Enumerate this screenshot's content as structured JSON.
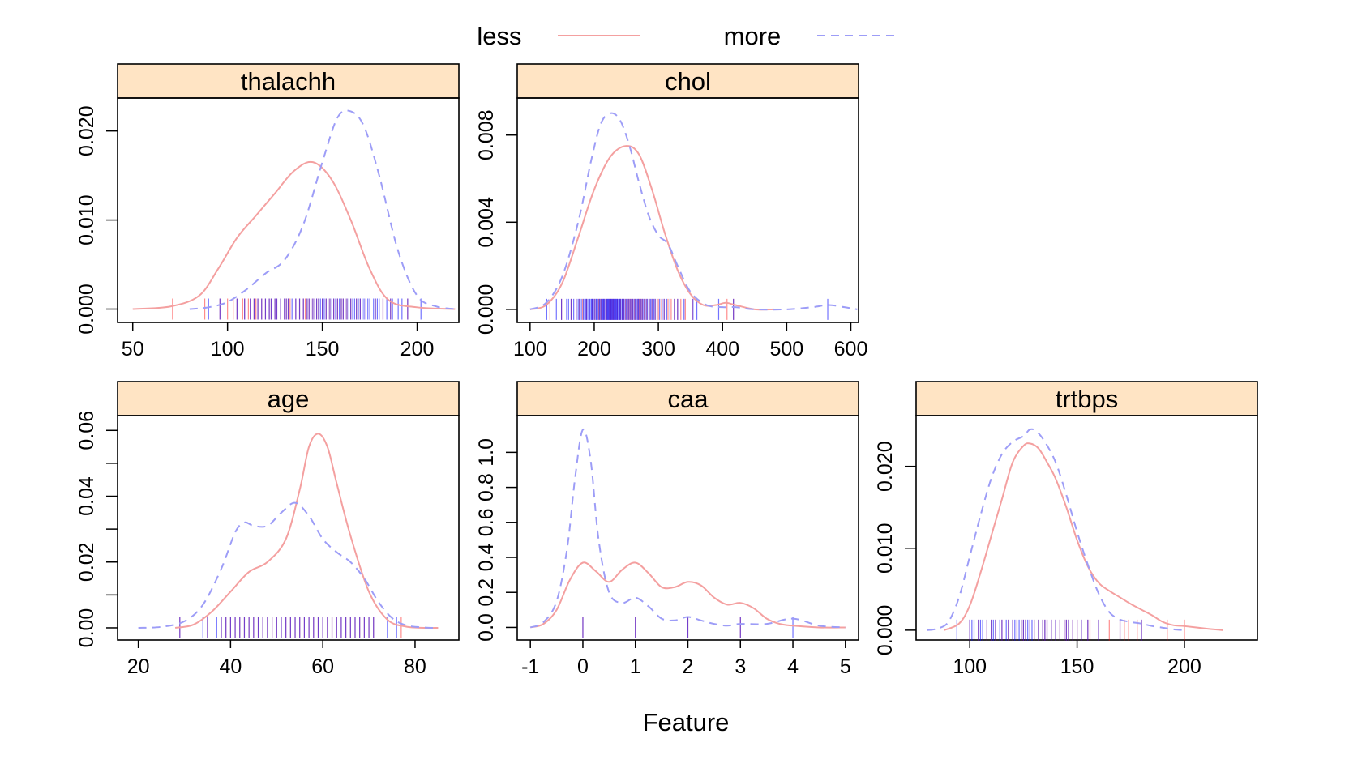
{
  "legend": {
    "entries": [
      {
        "label": "less",
        "color": "#f4a0a0",
        "dash": "solid"
      },
      {
        "label": "more",
        "color": "#9d9df7",
        "dash": "dashed"
      }
    ]
  },
  "xlabel": "Feature",
  "colors": {
    "strip": "#ffe4c4",
    "less_line": "#f4a0a0",
    "more_line": "#9d9df7",
    "rug_less": "#ff0000",
    "rug_more": "#0000ff"
  },
  "chart_data": [
    {
      "type": "line",
      "title": "thalachh",
      "xlim": [
        42,
        222
      ],
      "ylim": [
        -0.0015,
        0.0237
      ],
      "xticks": [
        50,
        100,
        150,
        200
      ],
      "yticks": [
        0,
        0.01,
        0.02
      ],
      "ytick_labels": [
        "0.000",
        "0.010",
        "0.020"
      ],
      "series": [
        {
          "name": "less",
          "x": [
            50,
            70,
            85,
            95,
            105,
            115,
            125,
            135,
            145,
            155,
            165,
            175,
            185,
            200,
            220
          ],
          "y": [
            0.0,
            0.0003,
            0.0015,
            0.0045,
            0.008,
            0.0105,
            0.013,
            0.0155,
            0.0165,
            0.0145,
            0.01,
            0.0045,
            0.001,
            0.0002,
            0.0
          ]
        },
        {
          "name": "more",
          "x": [
            80,
            90,
            100,
            110,
            120,
            130,
            140,
            150,
            158,
            165,
            172,
            180,
            190,
            200,
            210,
            220
          ],
          "y": [
            0.0,
            0.0002,
            0.0008,
            0.0022,
            0.004,
            0.0055,
            0.0095,
            0.0165,
            0.0215,
            0.0222,
            0.0205,
            0.015,
            0.0065,
            0.0015,
            0.0003,
            0.0
          ]
        }
      ],
      "rug_less": [
        71,
        88,
        96,
        100,
        103,
        105,
        108,
        109,
        111,
        112,
        114,
        115,
        116,
        118,
        120,
        122,
        123,
        125,
        126,
        128,
        130,
        131,
        132,
        133,
        136,
        138,
        140,
        141,
        142,
        143,
        144,
        145,
        146,
        147,
        148,
        150,
        152,
        153,
        154,
        156,
        158,
        160,
        161,
        162,
        163,
        165,
        168,
        170,
        173,
        178,
        182,
        186,
        195
      ],
      "rug_more": [
        90,
        96,
        105,
        109,
        112,
        114,
        116,
        118,
        120,
        122,
        123,
        125,
        126,
        128,
        130,
        131,
        132,
        134,
        136,
        138,
        140,
        142,
        143,
        144,
        145,
        146,
        147,
        148,
        149,
        150,
        151,
        152,
        153,
        154,
        155,
        156,
        157,
        158,
        159,
        160,
        161,
        162,
        163,
        164,
        165,
        166,
        167,
        168,
        169,
        170,
        171,
        172,
        173,
        174,
        175,
        177,
        178,
        179,
        180,
        182,
        184,
        186,
        187,
        190,
        192,
        195,
        202
      ]
    },
    {
      "type": "line",
      "title": "chol",
      "xlim": [
        80,
        612
      ],
      "ylim": [
        -0.0006,
        0.0097
      ],
      "xticks": [
        100,
        200,
        300,
        400,
        500,
        600
      ],
      "yticks": [
        0,
        0.004,
        0.008
      ],
      "ytick_labels": [
        "0.000",
        "0.004",
        "0.008"
      ],
      "series": [
        {
          "name": "less",
          "x": [
            100,
            125,
            150,
            175,
            200,
            225,
            250,
            270,
            290,
            310,
            330,
            350,
            370,
            390,
            405,
            420,
            450,
            480
          ],
          "y": [
            0.0,
            0.0002,
            0.0012,
            0.0033,
            0.0055,
            0.007,
            0.0075,
            0.0071,
            0.0055,
            0.0035,
            0.0018,
            0.0007,
            0.0002,
            0.0002,
            0.0003,
            0.0002,
            0.0,
            0.0
          ]
        },
        {
          "name": "more",
          "x": [
            100,
            125,
            150,
            175,
            195,
            210,
            225,
            240,
            255,
            270,
            285,
            300,
            315,
            330,
            350,
            375,
            400,
            420,
            450,
            500,
            540,
            565,
            590,
            610
          ],
          "y": [
            0.0,
            0.0003,
            0.0015,
            0.004,
            0.0068,
            0.0085,
            0.009,
            0.0087,
            0.0075,
            0.0058,
            0.0043,
            0.0034,
            0.003,
            0.002,
            0.0008,
            0.0002,
            0.0001,
            0.0001,
            0.0,
            0.0,
            0.0001,
            0.0002,
            0.0001,
            0.0
          ]
        }
      ],
      "rug_less": [
        131,
        149,
        164,
        172,
        177,
        182,
        188,
        192,
        197,
        201,
        204,
        207,
        209,
        211,
        215,
        218,
        220,
        223,
        226,
        228,
        230,
        233,
        236,
        239,
        241,
        244,
        246,
        249,
        252,
        254,
        256,
        258,
        260,
        263,
        265,
        268,
        270,
        273,
        275,
        278,
        282,
        286,
        290,
        295,
        300,
        305,
        309,
        315,
        320,
        325,
        330,
        335,
        342,
        353,
        407,
        417
      ],
      "rug_more": [
        126,
        141,
        149,
        157,
        160,
        164,
        168,
        172,
        175,
        177,
        180,
        183,
        185,
        187,
        188,
        190,
        192,
        193,
        195,
        196,
        197,
        199,
        201,
        203,
        204,
        206,
        208,
        209,
        211,
        212,
        213,
        214,
        215,
        216,
        218,
        219,
        220,
        221,
        222,
        223,
        224,
        225,
        226,
        227,
        228,
        229,
        230,
        231,
        232,
        233,
        234,
        235,
        236,
        237,
        239,
        240,
        241,
        243,
        244,
        245,
        246,
        248,
        250,
        252,
        254,
        256,
        258,
        260,
        262,
        264,
        266,
        268,
        269,
        271,
        273,
        275,
        277,
        279,
        281,
        283,
        286,
        288,
        290,
        293,
        295,
        298,
        302,
        306,
        309,
        313,
        318,
        325,
        330,
        340,
        354,
        360,
        394,
        417,
        564
      ]
    },
    {
      "type": "line",
      "title": "age",
      "xlim": [
        15.5,
        89.5
      ],
      "ylim": [
        -0.0037,
        0.0645
      ],
      "xticks": [
        20,
        40,
        60,
        80
      ],
      "yticks": [
        0,
        0.02,
        0.04,
        0.06
      ],
      "ytick_labels": [
        "0.00",
        "0.02",
        "0.04",
        "0.06"
      ],
      "minor_yticks": [
        0.01,
        0.03,
        0.05
      ],
      "series": [
        {
          "name": "less",
          "x": [
            28,
            32,
            36,
            40,
            44,
            48,
            52,
            55,
            57,
            59,
            61,
            63,
            66,
            70,
            74,
            78,
            82,
            85
          ],
          "y": [
            0.0,
            0.001,
            0.005,
            0.011,
            0.017,
            0.02,
            0.027,
            0.042,
            0.055,
            0.059,
            0.055,
            0.044,
            0.028,
            0.011,
            0.0025,
            0.0004,
            0.0,
            0.0
          ]
        },
        {
          "name": "more",
          "x": [
            20,
            25,
            30,
            34,
            38,
            41,
            43,
            45,
            48,
            51,
            54,
            57,
            60,
            63,
            66,
            69,
            72,
            75,
            78,
            82,
            85
          ],
          "y": [
            0.0,
            0.0003,
            0.002,
            0.007,
            0.018,
            0.029,
            0.032,
            0.031,
            0.031,
            0.035,
            0.038,
            0.034,
            0.027,
            0.023,
            0.02,
            0.015,
            0.008,
            0.003,
            0.0008,
            0.0001,
            0.0
          ]
        },
        {
          "name": "",
          "x": [],
          "y": []
        }
      ],
      "rug_less": [
        29,
        35,
        38,
        39,
        40,
        41,
        42,
        43,
        44,
        45,
        46,
        47,
        48,
        49,
        50,
        51,
        52,
        53,
        54,
        55,
        56,
        57,
        58,
        59,
        60,
        61,
        62,
        63,
        64,
        65,
        66,
        67,
        68,
        69,
        70,
        71,
        77
      ],
      "rug_more": [
        29,
        34,
        35,
        37,
        38,
        39,
        40,
        41,
        42,
        43,
        44,
        45,
        46,
        47,
        48,
        49,
        50,
        51,
        52,
        53,
        54,
        55,
        56,
        57,
        58,
        59,
        60,
        61,
        62,
        63,
        64,
        65,
        66,
        67,
        68,
        69,
        70,
        71,
        74,
        76
      ]
    },
    {
      "type": "line",
      "title": "caa",
      "xlim": [
        -1.25,
        5.25
      ],
      "ylim": [
        -0.072,
        1.21
      ],
      "xticks": [
        -1,
        0,
        1,
        2,
        3,
        4,
        5
      ],
      "yticks": [
        0,
        0.2,
        0.4,
        0.6,
        0.8,
        1.0
      ],
      "ytick_labels": [
        "0.0",
        "0.2",
        "0.4",
        "0.6",
        "0.8",
        "1.0"
      ],
      "series": [
        {
          "name": "less",
          "x": [
            -1,
            -0.75,
            -0.5,
            -0.25,
            0,
            0.25,
            0.5,
            0.75,
            1,
            1.25,
            1.5,
            1.75,
            2,
            2.25,
            2.5,
            2.75,
            3,
            3.25,
            3.5,
            3.75,
            4,
            4.5,
            5
          ],
          "y": [
            0.0,
            0.02,
            0.1,
            0.27,
            0.37,
            0.32,
            0.26,
            0.33,
            0.37,
            0.31,
            0.23,
            0.23,
            0.26,
            0.24,
            0.17,
            0.13,
            0.14,
            0.11,
            0.05,
            0.02,
            0.01,
            0.0,
            0.0
          ]
        },
        {
          "name": "more",
          "x": [
            -1,
            -0.75,
            -0.5,
            -0.3,
            -0.15,
            0,
            0.15,
            0.3,
            0.5,
            0.75,
            1,
            1.25,
            1.5,
            1.75,
            2,
            2.25,
            2.5,
            2.75,
            3,
            3.5,
            4,
            4.5,
            5
          ],
          "y": [
            0.0,
            0.03,
            0.15,
            0.45,
            0.85,
            1.13,
            0.95,
            0.5,
            0.2,
            0.14,
            0.17,
            0.12,
            0.05,
            0.04,
            0.06,
            0.04,
            0.02,
            0.01,
            0.02,
            0.02,
            0.05,
            0.01,
            0.0
          ]
        }
      ],
      "rug_less": [
        0,
        1,
        2,
        3
      ],
      "rug_more": [
        0,
        1,
        2,
        3,
        4
      ]
    },
    {
      "type": "line",
      "title": "trtbps",
      "xlim": [
        75,
        234
      ],
      "ylim": [
        -0.0012,
        0.0262
      ],
      "xticks": [
        100,
        150,
        200
      ],
      "yticks": [
        0,
        0.01,
        0.02
      ],
      "ytick_labels": [
        "0.000",
        "0.010",
        "0.020"
      ],
      "series": [
        {
          "name": "less",
          "x": [
            88,
            95,
            100,
            105,
            110,
            115,
            120,
            125,
            128,
            132,
            136,
            140,
            145,
            150,
            155,
            160,
            165,
            170,
            175,
            180,
            185,
            190,
            195,
            200,
            210,
            218
          ],
          "y": [
            0.0,
            0.0008,
            0.003,
            0.007,
            0.0115,
            0.016,
            0.0205,
            0.0225,
            0.0228,
            0.0222,
            0.0205,
            0.0185,
            0.015,
            0.011,
            0.0078,
            0.0058,
            0.0048,
            0.004,
            0.0032,
            0.0025,
            0.0018,
            0.001,
            0.0006,
            0.0005,
            0.0002,
            0.0
          ]
        },
        {
          "name": "more",
          "x": [
            80,
            85,
            90,
            95,
            100,
            105,
            110,
            115,
            120,
            125,
            128,
            131,
            135,
            140,
            145,
            150,
            155,
            160,
            165,
            170,
            175,
            180,
            185,
            190,
            195,
            200
          ],
          "y": [
            0.0,
            0.0002,
            0.001,
            0.004,
            0.009,
            0.014,
            0.0185,
            0.0215,
            0.023,
            0.0237,
            0.0245,
            0.0243,
            0.023,
            0.0205,
            0.0165,
            0.012,
            0.008,
            0.0045,
            0.0022,
            0.0013,
            0.001,
            0.0008,
            0.0005,
            0.0003,
            0.0001,
            0.0
          ]
        }
      ],
      "rug_less": [
        100,
        104,
        108,
        110,
        112,
        115,
        118,
        120,
        122,
        124,
        125,
        126,
        128,
        130,
        132,
        134,
        135,
        136,
        138,
        140,
        142,
        144,
        145,
        146,
        148,
        150,
        152,
        155,
        156,
        160,
        165,
        170,
        172,
        174,
        178,
        180,
        192,
        200
      ],
      "rug_more": [
        94,
        100,
        101,
        102,
        104,
        105,
        106,
        108,
        110,
        111,
        112,
        114,
        115,
        117,
        118,
        120,
        121,
        122,
        123,
        124,
        125,
        126,
        127,
        128,
        129,
        130,
        132,
        134,
        135,
        136,
        138,
        140,
        142,
        144,
        145,
        146,
        148,
        150,
        152,
        155,
        160,
        170,
        180
      ]
    }
  ]
}
